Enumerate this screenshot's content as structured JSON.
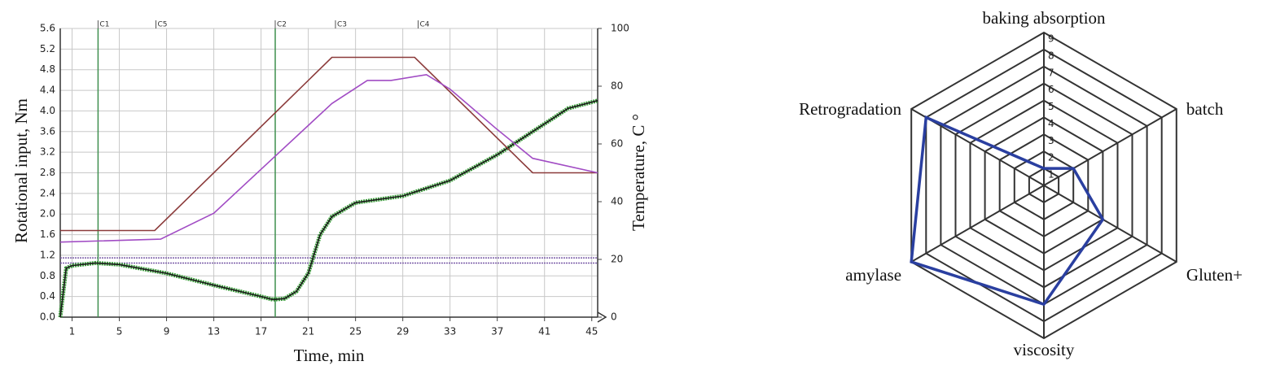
{
  "chart_data": [
    {
      "type": "line",
      "xlabel": "Time, min",
      "ylabel": "Rotational input, Nm",
      "y2label": "Temperature, C °",
      "xlim": [
        0,
        45.5
      ],
      "xticks": [
        1,
        5,
        9,
        13,
        17,
        21,
        25,
        29,
        33,
        37,
        41,
        45
      ],
      "ylim": [
        0,
        5.6
      ],
      "yticks": [
        {
          "value": 0,
          "label": "0.0"
        },
        0.4,
        0.8,
        1.2,
        1.6,
        {
          "value": 2,
          "label": "2.0"
        },
        2.4,
        2.8,
        3.2,
        3.6,
        {
          "value": 4,
          "label": "4.0"
        },
        4.4,
        4.8,
        5.2,
        5.6
      ],
      "y2lim": [
        0,
        100
      ],
      "y2ticks": [
        0,
        20,
        40,
        60,
        80,
        100
      ],
      "grid": true,
      "target_band": {
        "values": [
          1.05,
          1.15
        ],
        "color": "#7a5ca8"
      },
      "markers": [
        {
          "label": "C1",
          "x": 3.2,
          "line": true,
          "color": "#3f8f4f"
        },
        {
          "label": "C5",
          "x": 8.1,
          "line": false,
          "color": "#3f8f4f"
        },
        {
          "label": "C2",
          "x": 18.2,
          "line": true,
          "color": "#3f8f4f"
        },
        {
          "label": "C3",
          "x": 23.3,
          "line": false,
          "color": "#3f8f4f"
        },
        {
          "label": "C4",
          "x": 30.3,
          "line": false,
          "color": "#3f8f4f"
        }
      ],
      "series": [
        {
          "color": "#1a1a1a",
          "outline_color": "#3a9a3a",
          "x": [
            0,
            0.5,
            1,
            3,
            5,
            9,
            13,
            17,
            18,
            19,
            20,
            21,
            22,
            23,
            25,
            29,
            33,
            37,
            41,
            43,
            45.5
          ],
          "values": [
            0,
            0.95,
            1.0,
            1.05,
            1.02,
            0.85,
            0.62,
            0.4,
            0.34,
            0.36,
            0.5,
            0.85,
            1.6,
            1.95,
            2.22,
            2.35,
            2.65,
            3.15,
            3.75,
            4.05,
            4.2
          ]
        },
        {
          "color": "#8b3a3a",
          "axis": "y2",
          "x": [
            0,
            8,
            23,
            30,
            40,
            45.5
          ],
          "values": [
            30,
            30,
            90,
            90,
            50,
            50
          ]
        },
        {
          "color": "#a14cc4",
          "axis": "y2",
          "x": [
            0,
            8.5,
            13,
            18,
            23,
            26,
            28,
            31,
            33,
            37,
            40,
            45.5
          ],
          "values": [
            26,
            27,
            36,
            55,
            74,
            82,
            82,
            84,
            79,
            65,
            55,
            50
          ]
        }
      ]
    },
    {
      "type": "radar",
      "categories": [
        "baking absorption",
        "batch",
        "Gluten+",
        "viscosity",
        "amylase",
        "Retrogradation"
      ],
      "values": [
        1,
        2,
        4,
        7,
        9,
        8
      ],
      "color": "#2a3fa0",
      "rlim": [
        0,
        9
      ],
      "rticks": [
        1,
        2,
        3,
        4,
        5,
        6,
        7,
        8,
        9
      ]
    }
  ]
}
